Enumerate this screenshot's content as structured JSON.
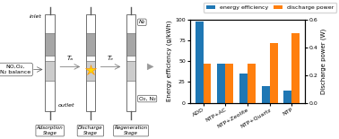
{
  "chart_data": {
    "type": "bar",
    "categories": [
      "ADD",
      "NTP+AC",
      "NTP+Zeolite",
      "NTP+Quartz",
      "NTP"
    ],
    "series": [
      {
        "name": "energy efficiency",
        "values": [
          98,
          47,
          35,
          20,
          15
        ]
      },
      {
        "name": "discharge power",
        "values": [
          0.285,
          0.285,
          0.285,
          0.43,
          0.5
        ],
        "axis": "y2"
      }
    ],
    "ylabel": "Energy efficiency (g/kWh)",
    "y2label": "Discharge power (W)",
    "ylim": [
      0,
      100
    ],
    "yticks": [
      0,
      25,
      50,
      75,
      100
    ],
    "y2lim": [
      0.0,
      0.6
    ],
    "y2ticks": [
      0.0,
      0.2,
      0.4,
      0.6
    ],
    "legend": "upper right",
    "annotations": [
      "inlet",
      "outlet",
      "NO,O₂,\nN₂ balance",
      "Tₐ",
      "Tₑ",
      "N₂",
      "O₂, N₂",
      "Adsorption\nStage",
      "Discharge\nStage",
      "Regeneration\nStage"
    ]
  }
}
